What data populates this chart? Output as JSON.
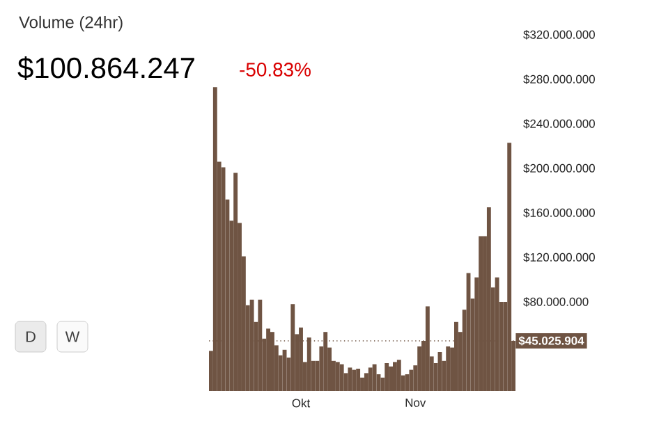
{
  "chart_data": {
    "type": "bar",
    "title": "Volume (24hr)",
    "subtitle": "$100.864.247",
    "annotations": [
      "-50.83%",
      "D",
      "W"
    ],
    "categories": [
      null,
      null,
      null,
      null,
      null,
      null,
      null,
      null,
      null,
      null,
      null,
      null,
      null,
      null,
      null,
      null,
      null,
      null,
      null,
      null,
      null,
      null,
      "Okt",
      null,
      null,
      null,
      null,
      null,
      null,
      null,
      null,
      null,
      null,
      null,
      null,
      null,
      null,
      null,
      null,
      null,
      null,
      null,
      null,
      null,
      null,
      null,
      null,
      null,
      null,
      null,
      "Nov",
      null,
      null,
      null,
      null,
      null,
      null,
      null,
      null,
      null,
      null,
      null,
      null,
      null,
      null,
      null,
      null,
      null,
      null,
      null,
      null,
      null,
      null,
      null,
      null
    ],
    "values": [
      36000000,
      273000000,
      206000000,
      201000000,
      172000000,
      153000000,
      196000000,
      151000000,
      121000000,
      77000000,
      82000000,
      62000000,
      82000000,
      47000000,
      56000000,
      53000000,
      41000000,
      32000000,
      37000000,
      30000000,
      78000000,
      51000000,
      57000000,
      26000000,
      48000000,
      27000000,
      27000000,
      40000000,
      53000000,
      39000000,
      27000000,
      26000000,
      24000000,
      16000000,
      21000000,
      19000000,
      20000000,
      12000000,
      16000000,
      21000000,
      24000000,
      15000000,
      12000000,
      25000000,
      22000000,
      26000000,
      28000000,
      14000000,
      15000000,
      19000000,
      23000000,
      40000000,
      45000000,
      76000000,
      31000000,
      25000000,
      35000000,
      27000000,
      40000000,
      39000000,
      62000000,
      53000000,
      73000000,
      106000000,
      83000000,
      102000000,
      139000000,
      139000000,
      165000000,
      93000000,
      102000000,
      80000000,
      80000000,
      223000000,
      45000000
    ],
    "color": "#6f5443",
    "ylim": [
      0,
      320000000
    ],
    "yticks": [
      {
        "value": 80000000,
        "label": "$80.000.000"
      },
      {
        "value": 120000000,
        "label": "$120.000.000"
      },
      {
        "value": 160000000,
        "label": "$160.000.000"
      },
      {
        "value": 200000000,
        "label": "$200.000.000"
      },
      {
        "value": 240000000,
        "label": "$240.000.000"
      },
      {
        "value": 280000000,
        "label": "$280.000.000"
      },
      {
        "value": 320000000,
        "label": "$320.000.000"
      }
    ],
    "ref_lines": [
      {
        "axis": "y",
        "value": 45025904,
        "label": "$45.025.904",
        "color": "#6f5443",
        "line_style": "dotted"
      }
    ],
    "grid": false
  }
}
